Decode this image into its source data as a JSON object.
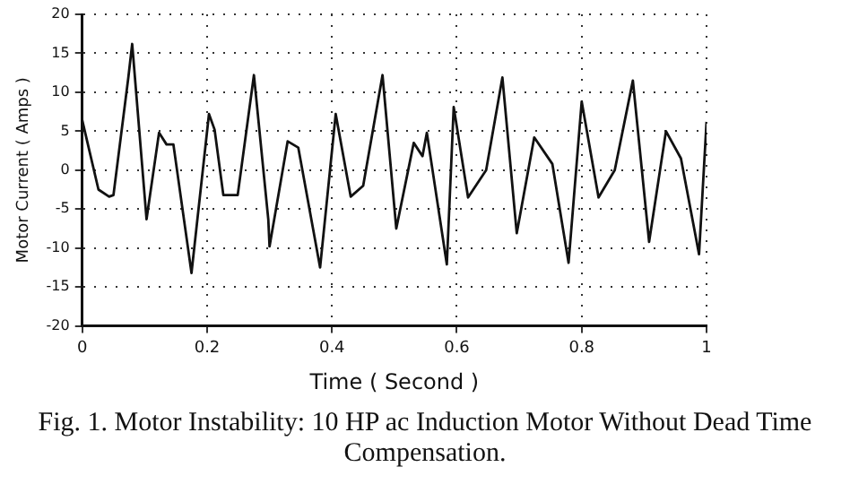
{
  "chart_data": {
    "type": "line",
    "xlabel": "Time ( Second )",
    "ylabel": "Motor Current ( Amps )",
    "annotations": [
      "Fig. 1.  Motor Instability:  10 HP ac Induction Motor Without Dead Time Compensation."
    ],
    "x": [
      0,
      0.026,
      0.043,
      0.05,
      0.074,
      0.08,
      0.103,
      0.123,
      0.135,
      0.146,
      0.175,
      0.203,
      0.212,
      0.226,
      0.249,
      0.275,
      0.298,
      0.3,
      0.329,
      0.346,
      0.381,
      0.406,
      0.43,
      0.45,
      0.481,
      0.503,
      0.531,
      0.545,
      0.552,
      0.584,
      0.595,
      0.618,
      0.647,
      0.673,
      0.696,
      0.724,
      0.753,
      0.779,
      0.8,
      0.827,
      0.853,
      0.882,
      0.908,
      0.935,
      0.959,
      0.988,
      1.0
    ],
    "series": [
      {
        "color": "#111111",
        "values": [
          6.4,
          -2.5,
          -3.4,
          -3.2,
          12,
          16.2,
          -6.3,
          4.8,
          3.3,
          3.3,
          -13.2,
          7.2,
          5.2,
          -3.2,
          -3.2,
          12.2,
          -6.3,
          -9.8,
          3.7,
          2.9,
          -12.5,
          7.2,
          -3.4,
          -2,
          12.2,
          -7.5,
          3.5,
          1.8,
          4.8,
          -12.1,
          8.1,
          -3.5,
          0,
          11.9,
          -8.1,
          4.2,
          0.8,
          -11.9,
          8.8,
          -3.5,
          0,
          11.5,
          -9.2,
          5,
          1.5,
          -10.8,
          6.2
        ]
      }
    ],
    "xlim": [
      0,
      1
    ],
    "xticks": [
      0,
      0.2,
      0.4,
      0.6,
      0.8,
      1
    ],
    "ylim": [
      -20,
      20
    ],
    "yticks": [
      -20,
      -15,
      -10,
      -5,
      0,
      5,
      10,
      15,
      20
    ],
    "grid": true,
    "legend": false,
    "marker": "none",
    "line_style": "solid"
  }
}
